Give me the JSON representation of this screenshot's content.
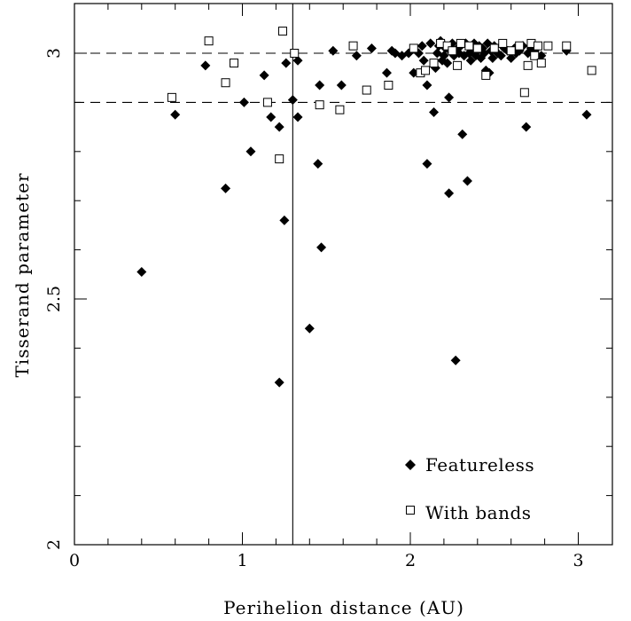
{
  "chart_data": {
    "type": "scatter",
    "xlabel": "Perihelion distance (AU)",
    "ylabel": "Tisserand parameter",
    "xlim": [
      0,
      3.2
    ],
    "ylim": [
      2,
      3.1
    ],
    "x_ticks": [
      "0",
      "1",
      "2",
      "3"
    ],
    "y_ticks": [
      "2",
      "2.5",
      "3"
    ],
    "x_minor_step": 0.2,
    "y_minor_step": 0.1,
    "reference_lines": {
      "vertical_x": 1.3,
      "horizontal_dashed_y": [
        3.0,
        2.9
      ]
    },
    "legend_position": "bottom-right",
    "series": [
      {
        "name": "Featureless",
        "marker": "filled-diamond",
        "color": "#000000",
        "points": [
          [
            0.4,
            2.555
          ],
          [
            0.6,
            2.875
          ],
          [
            0.78,
            2.975
          ],
          [
            0.9,
            2.725
          ],
          [
            1.01,
            2.9
          ],
          [
            1.05,
            2.8
          ],
          [
            1.13,
            2.955
          ],
          [
            1.17,
            2.87
          ],
          [
            1.22,
            2.85
          ],
          [
            1.22,
            2.33
          ],
          [
            1.25,
            2.66
          ],
          [
            1.26,
            2.98
          ],
          [
            1.3,
            2.905
          ],
          [
            1.33,
            2.985
          ],
          [
            1.33,
            2.87
          ],
          [
            1.4,
            2.44
          ],
          [
            1.45,
            2.775
          ],
          [
            1.46,
            2.935
          ],
          [
            1.47,
            2.605
          ],
          [
            1.54,
            3.005
          ],
          [
            1.59,
            2.935
          ],
          [
            1.68,
            2.995
          ],
          [
            1.77,
            3.01
          ],
          [
            1.86,
            2.96
          ],
          [
            1.89,
            3.005
          ],
          [
            1.91,
            3.0
          ],
          [
            1.95,
            2.995
          ],
          [
            1.99,
            3.0
          ],
          [
            2.02,
            2.96
          ],
          [
            2.05,
            3.0
          ],
          [
            2.07,
            3.015
          ],
          [
            2.08,
            2.985
          ],
          [
            2.1,
            2.775
          ],
          [
            2.1,
            2.935
          ],
          [
            2.12,
            3.02
          ],
          [
            2.14,
            2.88
          ],
          [
            2.15,
            2.97
          ],
          [
            2.16,
            3.0
          ],
          [
            2.17,
            3.015
          ],
          [
            2.18,
            3.025
          ],
          [
            2.19,
            2.985
          ],
          [
            2.2,
            2.995
          ],
          [
            2.21,
            3.01
          ],
          [
            2.22,
            2.98
          ],
          [
            2.23,
            2.91
          ],
          [
            2.23,
            2.715
          ],
          [
            2.24,
            3.005
          ],
          [
            2.25,
            3.02
          ],
          [
            2.26,
            2.995
          ],
          [
            2.27,
            2.375
          ],
          [
            2.28,
            3.01
          ],
          [
            2.29,
            3.0
          ],
          [
            2.3,
            3.015
          ],
          [
            2.31,
            2.835
          ],
          [
            2.32,
            2.995
          ],
          [
            2.33,
            3.02
          ],
          [
            2.34,
            2.74
          ],
          [
            2.35,
            3.0
          ],
          [
            2.36,
            2.985
          ],
          [
            2.37,
            3.01
          ],
          [
            2.38,
            3.02
          ],
          [
            2.39,
            2.995
          ],
          [
            2.4,
            3.005
          ],
          [
            2.41,
            3.015
          ],
          [
            2.42,
            2.99
          ],
          [
            2.43,
            3.01
          ],
          [
            2.44,
            3.0
          ],
          [
            2.45,
            2.965
          ],
          [
            2.46,
            3.02
          ],
          [
            2.47,
            2.96
          ],
          [
            2.48,
            3.005
          ],
          [
            2.49,
            2.99
          ],
          [
            2.5,
            3.015
          ],
          [
            2.52,
            3.0
          ],
          [
            2.54,
            2.995
          ],
          [
            2.56,
            3.01
          ],
          [
            2.58,
            3.005
          ],
          [
            2.6,
            2.99
          ],
          [
            2.62,
            3.01
          ],
          [
            2.63,
            3.0
          ],
          [
            2.65,
            3.005
          ],
          [
            2.67,
            3.015
          ],
          [
            2.69,
            2.85
          ],
          [
            2.7,
            3.0
          ],
          [
            2.72,
            3.01
          ],
          [
            2.74,
            3.005
          ],
          [
            2.78,
            2.995
          ],
          [
            2.93,
            3.005
          ],
          [
            3.05,
            2.875
          ]
        ]
      },
      {
        "name": "With bands",
        "marker": "open-square",
        "color": "#000000",
        "points": [
          [
            0.58,
            2.91
          ],
          [
            0.8,
            3.025
          ],
          [
            0.9,
            2.94
          ],
          [
            0.95,
            2.98
          ],
          [
            1.15,
            2.9
          ],
          [
            1.22,
            2.785
          ],
          [
            1.24,
            3.045
          ],
          [
            1.31,
            3.0
          ],
          [
            1.46,
            2.895
          ],
          [
            1.58,
            2.885
          ],
          [
            1.66,
            3.015
          ],
          [
            1.74,
            2.925
          ],
          [
            1.87,
            2.935
          ],
          [
            2.02,
            3.01
          ],
          [
            2.06,
            2.96
          ],
          [
            2.09,
            2.965
          ],
          [
            2.14,
            2.98
          ],
          [
            2.18,
            3.02
          ],
          [
            2.22,
            3.015
          ],
          [
            2.25,
            3.005
          ],
          [
            2.28,
            2.975
          ],
          [
            2.3,
            3.02
          ],
          [
            2.35,
            3.015
          ],
          [
            2.4,
            3.01
          ],
          [
            2.45,
            2.955
          ],
          [
            2.5,
            3.01
          ],
          [
            2.55,
            3.02
          ],
          [
            2.6,
            3.005
          ],
          [
            2.65,
            3.015
          ],
          [
            2.68,
            2.92
          ],
          [
            2.7,
            2.975
          ],
          [
            2.72,
            3.02
          ],
          [
            2.74,
            2.995
          ],
          [
            2.76,
            3.015
          ],
          [
            2.78,
            2.98
          ],
          [
            2.82,
            3.015
          ],
          [
            2.93,
            3.015
          ],
          [
            3.08,
            2.965
          ]
        ]
      }
    ]
  }
}
